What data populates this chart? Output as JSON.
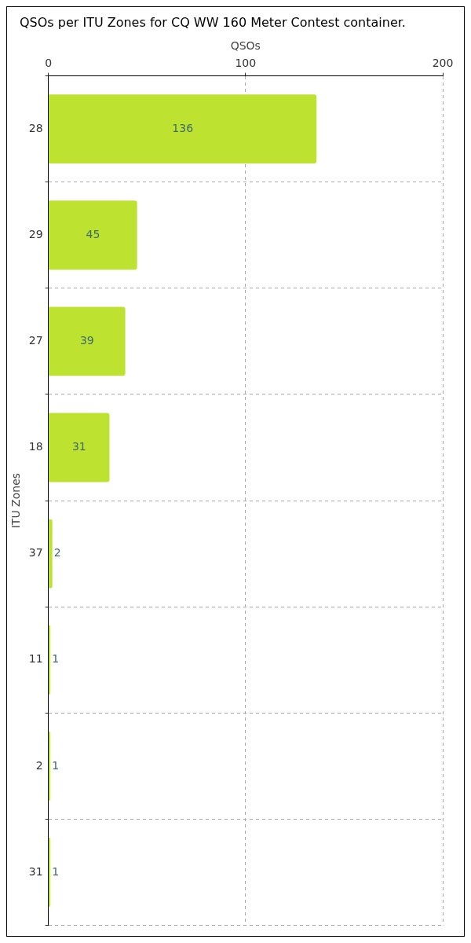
{
  "chart_data": {
    "type": "bar",
    "orientation": "horizontal",
    "title": "QSOs per ITU Zones for CQ WW 160 Meter Contest container.",
    "xlabel": "QSOs",
    "ylabel": "ITU Zones",
    "categories": [
      "28",
      "29",
      "27",
      "18",
      "37",
      "11",
      "2",
      "31"
    ],
    "values": [
      136,
      45,
      39,
      31,
      2,
      1,
      1,
      1
    ],
    "color": "#bde22f",
    "xlim": [
      0,
      200
    ],
    "xticks": [
      0,
      100,
      200
    ],
    "grid": true,
    "data_labels": true,
    "legend": false
  }
}
